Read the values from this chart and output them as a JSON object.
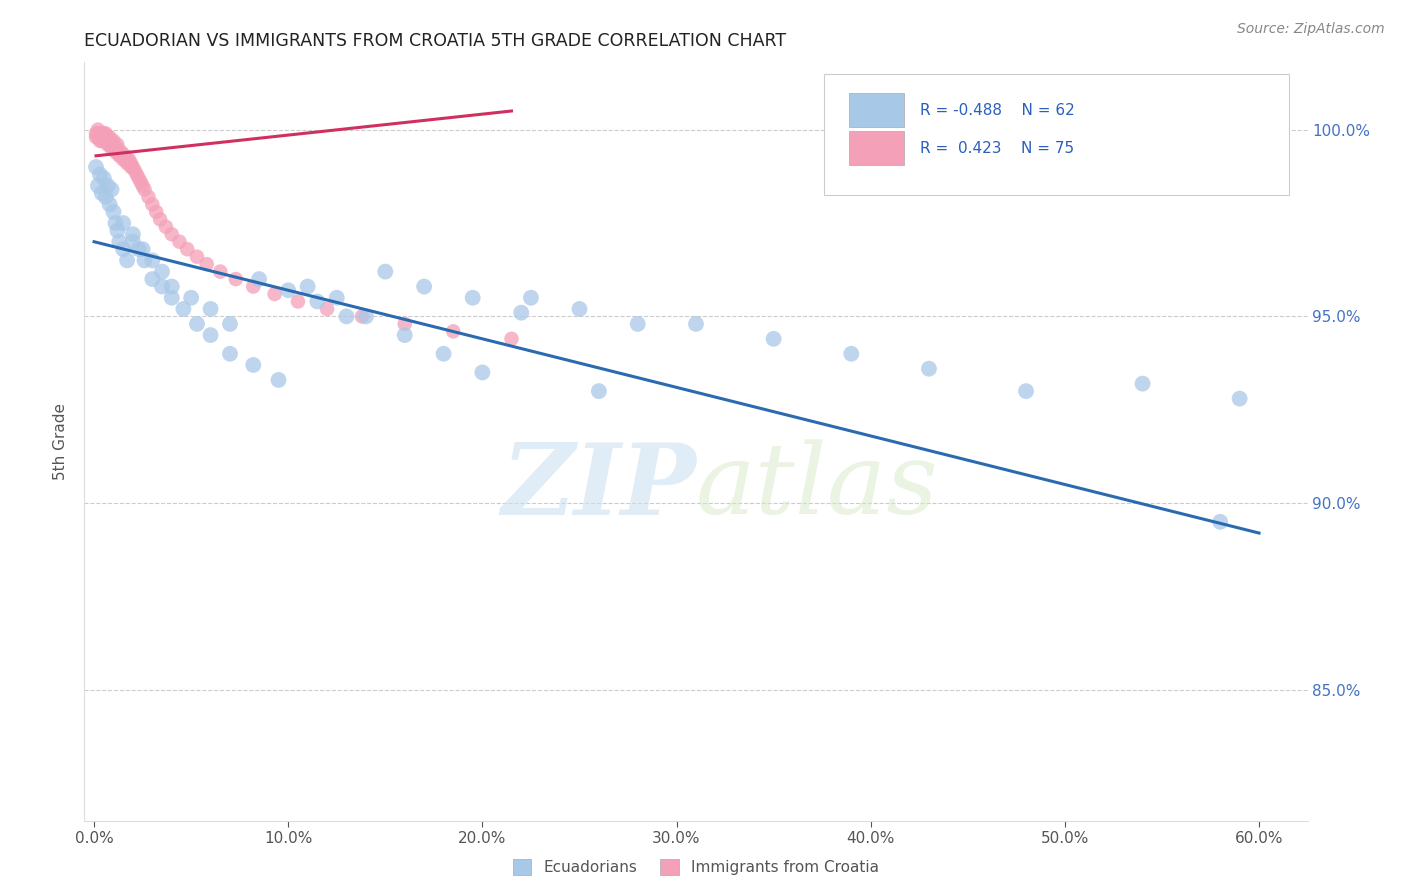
{
  "title": "ECUADORIAN VS IMMIGRANTS FROM CROATIA 5TH GRADE CORRELATION CHART",
  "source_text": "Source: ZipAtlas.com",
  "ylabel": "5th Grade",
  "legend_label1": "Ecuadorians",
  "legend_label2": "Immigrants from Croatia",
  "R1": -0.488,
  "N1": 62,
  "R2": 0.423,
  "N2": 75,
  "blue_color": "#a8c8e8",
  "pink_color": "#f4a0b8",
  "blue_line_color": "#2a6ab0",
  "pink_line_color": "#d03060",
  "background_color": "#ffffff",
  "grid_color": "#cccccc",
  "watermark_zip": "ZIP",
  "watermark_atlas": "atlas",
  "xlim": [
    -0.005,
    0.625
  ],
  "ylim": [
    0.815,
    1.018
  ],
  "xtick_values": [
    0.0,
    0.1,
    0.2,
    0.3,
    0.4,
    0.5,
    0.6
  ],
  "ytick_values": [
    0.85,
    0.9,
    0.95,
    1.0
  ],
  "blue_scatter_x": [
    0.001,
    0.002,
    0.003,
    0.004,
    0.005,
    0.006,
    0.007,
    0.008,
    0.009,
    0.01,
    0.011,
    0.012,
    0.013,
    0.015,
    0.017,
    0.02,
    0.023,
    0.026,
    0.03,
    0.035,
    0.04,
    0.046,
    0.053,
    0.06,
    0.07,
    0.082,
    0.095,
    0.11,
    0.125,
    0.14,
    0.16,
    0.18,
    0.2,
    0.225,
    0.25,
    0.28,
    0.015,
    0.02,
    0.025,
    0.03,
    0.035,
    0.04,
    0.05,
    0.06,
    0.07,
    0.085,
    0.1,
    0.115,
    0.13,
    0.15,
    0.17,
    0.195,
    0.22,
    0.31,
    0.35,
    0.39,
    0.43,
    0.48,
    0.54,
    0.59,
    0.58,
    0.26
  ],
  "blue_scatter_y": [
    0.99,
    0.985,
    0.988,
    0.983,
    0.987,
    0.982,
    0.985,
    0.98,
    0.984,
    0.978,
    0.975,
    0.973,
    0.97,
    0.968,
    0.965,
    0.972,
    0.968,
    0.965,
    0.96,
    0.958,
    0.955,
    0.952,
    0.948,
    0.945,
    0.94,
    0.937,
    0.933,
    0.958,
    0.955,
    0.95,
    0.945,
    0.94,
    0.935,
    0.955,
    0.952,
    0.948,
    0.975,
    0.97,
    0.968,
    0.965,
    0.962,
    0.958,
    0.955,
    0.952,
    0.948,
    0.96,
    0.957,
    0.954,
    0.95,
    0.962,
    0.958,
    0.955,
    0.951,
    0.948,
    0.944,
    0.94,
    0.936,
    0.93,
    0.932,
    0.928,
    0.895,
    0.93
  ],
  "pink_scatter_x": [
    0.001,
    0.001,
    0.002,
    0.002,
    0.002,
    0.003,
    0.003,
    0.003,
    0.004,
    0.004,
    0.004,
    0.005,
    0.005,
    0.005,
    0.006,
    0.006,
    0.006,
    0.007,
    0.007,
    0.007,
    0.008,
    0.008,
    0.008,
    0.009,
    0.009,
    0.009,
    0.01,
    0.01,
    0.01,
    0.011,
    0.011,
    0.012,
    0.012,
    0.012,
    0.013,
    0.013,
    0.014,
    0.014,
    0.015,
    0.015,
    0.016,
    0.016,
    0.017,
    0.017,
    0.018,
    0.018,
    0.019,
    0.019,
    0.02,
    0.021,
    0.022,
    0.023,
    0.024,
    0.025,
    0.026,
    0.028,
    0.03,
    0.032,
    0.034,
    0.037,
    0.04,
    0.044,
    0.048,
    0.053,
    0.058,
    0.065,
    0.073,
    0.082,
    0.093,
    0.105,
    0.12,
    0.138,
    0.16,
    0.185,
    0.215
  ],
  "pink_scatter_y": [
    0.998,
    0.999,
    0.998,
    0.999,
    1.0,
    0.997,
    0.998,
    0.999,
    0.997,
    0.998,
    0.999,
    0.997,
    0.998,
    0.999,
    0.997,
    0.998,
    0.999,
    0.996,
    0.997,
    0.998,
    0.996,
    0.997,
    0.998,
    0.995,
    0.996,
    0.997,
    0.995,
    0.996,
    0.997,
    0.994,
    0.995,
    0.994,
    0.995,
    0.996,
    0.993,
    0.994,
    0.993,
    0.994,
    0.992,
    0.993,
    0.992,
    0.993,
    0.991,
    0.992,
    0.991,
    0.992,
    0.99,
    0.991,
    0.99,
    0.989,
    0.988,
    0.987,
    0.986,
    0.985,
    0.984,
    0.982,
    0.98,
    0.978,
    0.976,
    0.974,
    0.972,
    0.97,
    0.968,
    0.966,
    0.964,
    0.962,
    0.96,
    0.958,
    0.956,
    0.954,
    0.952,
    0.95,
    0.948,
    0.946,
    0.944
  ],
  "blue_trendline_x": [
    0.0,
    0.6
  ],
  "blue_trendline_y": [
    0.97,
    0.892
  ],
  "pink_trendline_x": [
    0.001,
    0.215
  ],
  "pink_trendline_y": [
    0.993,
    1.005
  ]
}
